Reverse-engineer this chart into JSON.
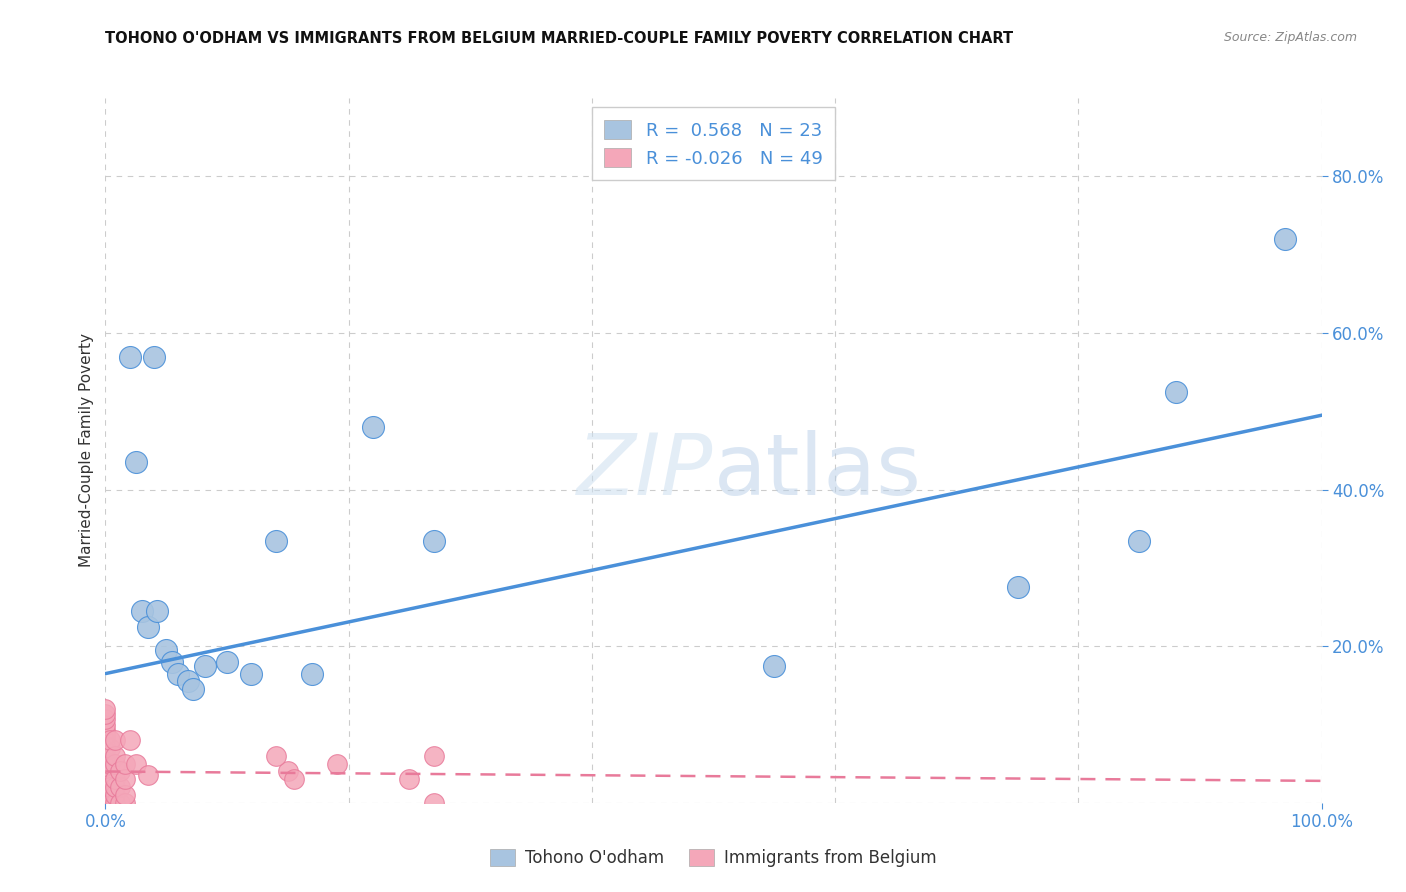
{
  "title": "TOHONO O'ODHAM VS IMMIGRANTS FROM BELGIUM MARRIED-COUPLE FAMILY POVERTY CORRELATION CHART",
  "source": "Source: ZipAtlas.com",
  "ylabel": "Married-Couple Family Poverty",
  "watermark": "ZIPatlas",
  "color_blue": "#a8c4e0",
  "color_pink": "#f4a7b9",
  "line_blue": "#4a90d9",
  "line_pink": "#e87a9a",
  "bg_color": "#ffffff",
  "grid_color": "#cccccc",
  "xlim": [
    0.0,
    1.0
  ],
  "ylim": [
    0.0,
    0.9
  ],
  "blue_scatter": [
    [
      0.02,
      0.57
    ],
    [
      0.025,
      0.435
    ],
    [
      0.03,
      0.245
    ],
    [
      0.035,
      0.225
    ],
    [
      0.04,
      0.57
    ],
    [
      0.042,
      0.245
    ],
    [
      0.05,
      0.195
    ],
    [
      0.055,
      0.18
    ],
    [
      0.06,
      0.165
    ],
    [
      0.068,
      0.155
    ],
    [
      0.072,
      0.145
    ],
    [
      0.082,
      0.175
    ],
    [
      0.1,
      0.18
    ],
    [
      0.12,
      0.165
    ],
    [
      0.14,
      0.335
    ],
    [
      0.17,
      0.165
    ],
    [
      0.22,
      0.48
    ],
    [
      0.27,
      0.335
    ],
    [
      0.55,
      0.175
    ],
    [
      0.75,
      0.275
    ],
    [
      0.85,
      0.335
    ],
    [
      0.88,
      0.525
    ],
    [
      0.97,
      0.72
    ]
  ],
  "pink_scatter": [
    [
      0.0,
      0.0
    ],
    [
      0.0,
      0.007
    ],
    [
      0.0,
      0.014
    ],
    [
      0.0,
      0.02
    ],
    [
      0.0,
      0.027
    ],
    [
      0.0,
      0.033
    ],
    [
      0.0,
      0.04
    ],
    [
      0.0,
      0.047
    ],
    [
      0.0,
      0.053
    ],
    [
      0.0,
      0.06
    ],
    [
      0.0,
      0.067
    ],
    [
      0.0,
      0.073
    ],
    [
      0.0,
      0.08
    ],
    [
      0.0,
      0.087
    ],
    [
      0.0,
      0.093
    ],
    [
      0.0,
      0.1
    ],
    [
      0.0,
      0.107
    ],
    [
      0.0,
      0.113
    ],
    [
      0.0,
      0.12
    ],
    [
      0.004,
      0.0
    ],
    [
      0.004,
      0.01
    ],
    [
      0.004,
      0.02
    ],
    [
      0.004,
      0.05
    ],
    [
      0.004,
      0.07
    ],
    [
      0.004,
      0.08
    ],
    [
      0.008,
      0.0
    ],
    [
      0.008,
      0.01
    ],
    [
      0.008,
      0.02
    ],
    [
      0.008,
      0.03
    ],
    [
      0.008,
      0.05
    ],
    [
      0.008,
      0.06
    ],
    [
      0.008,
      0.08
    ],
    [
      0.012,
      0.0
    ],
    [
      0.012,
      0.02
    ],
    [
      0.012,
      0.04
    ],
    [
      0.016,
      0.0
    ],
    [
      0.016,
      0.01
    ],
    [
      0.016,
      0.03
    ],
    [
      0.016,
      0.05
    ],
    [
      0.02,
      0.08
    ],
    [
      0.025,
      0.05
    ],
    [
      0.035,
      0.035
    ],
    [
      0.15,
      0.04
    ],
    [
      0.155,
      0.03
    ],
    [
      0.19,
      0.05
    ],
    [
      0.25,
      0.03
    ],
    [
      0.27,
      0.06
    ],
    [
      0.27,
      0.0
    ],
    [
      0.14,
      0.06
    ]
  ],
  "blue_line_x": [
    0.0,
    1.0
  ],
  "blue_line_y": [
    0.165,
    0.495
  ],
  "pink_line_x": [
    0.0,
    1.0
  ],
  "pink_line_y": [
    0.04,
    0.028
  ]
}
